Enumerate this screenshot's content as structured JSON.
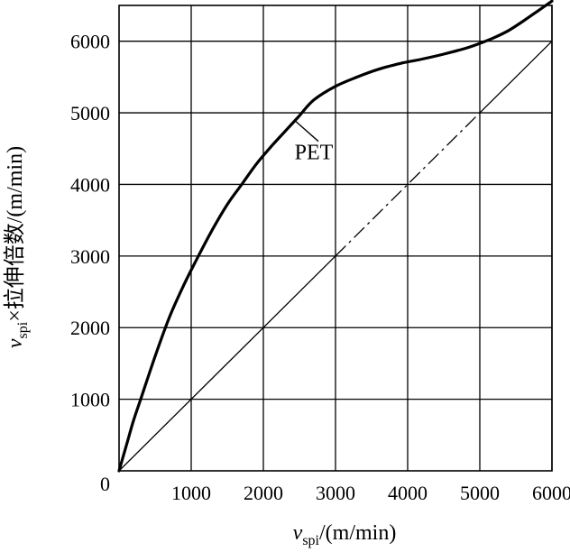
{
  "chart_data": {
    "type": "line",
    "title": "",
    "xlabel": {
      "main": "v",
      "sub": "spi",
      "rest": "/(m/min)"
    },
    "ylabel": {
      "main": "v",
      "sub": "spi",
      "rest": "×拉伸倍数/(m/min)"
    },
    "xlim": [
      0,
      6000
    ],
    "ylim": [
      0,
      6500
    ],
    "x_ticks": [
      0,
      1000,
      2000,
      3000,
      4000,
      5000,
      6000
    ],
    "x_tick_labels": [
      "0",
      "1000",
      "2000",
      "3000",
      "4000",
      "5000",
      "6000"
    ],
    "y_ticks": [
      0,
      1000,
      2000,
      3000,
      4000,
      5000,
      6000
    ],
    "y_tick_labels": [
      "0",
      "1000",
      "2000",
      "3000",
      "4000",
      "5000",
      "6000"
    ],
    "grid": true,
    "series": [
      {
        "name": "PET",
        "style": "solid-thick",
        "x": [
          0,
          100,
          200,
          300,
          500,
          700,
          900,
          1100,
          1300,
          1500,
          1700,
          1900,
          2100,
          2300,
          2500,
          2700,
          3000,
          3300,
          3600,
          3900,
          4200,
          4500,
          4800,
          5000,
          5200,
          5400,
          5600,
          5800,
          6000
        ],
        "y": [
          0,
          350,
          700,
          1000,
          1600,
          2150,
          2600,
          3000,
          3380,
          3720,
          4000,
          4280,
          4520,
          4740,
          4960,
          5180,
          5370,
          5500,
          5610,
          5690,
          5750,
          5820,
          5900,
          5970,
          6050,
          6150,
          6280,
          6420,
          6560
        ]
      },
      {
        "name": "",
        "style": "reference-line",
        "x": [
          0,
          6000
        ],
        "y": [
          0,
          6000
        ]
      }
    ],
    "annotations": [
      {
        "text": "PET",
        "x": 2700,
        "y": 4350,
        "pointer_to": [
          2450,
          4880
        ]
      }
    ]
  }
}
